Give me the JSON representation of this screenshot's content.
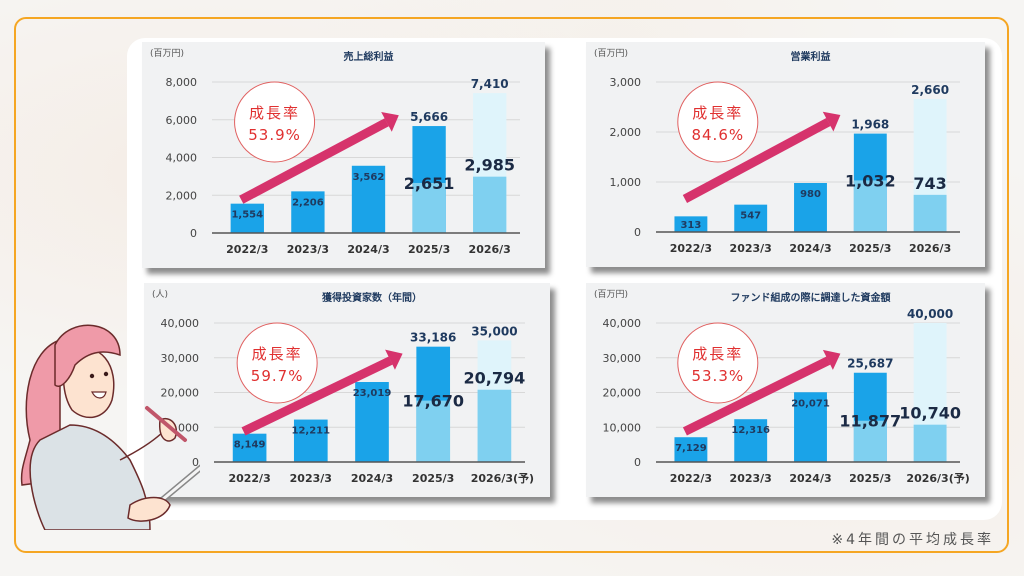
{
  "footnote": "※4年間の平均成長率",
  "colors": {
    "frame": "#f5a623",
    "bar_actual": "#1aa3e8",
    "bar_plan_lower": "#7fd0f0",
    "bar_plan_upper": "#dff4fb",
    "arrow": "#d6336c",
    "growth_text": "#e03030",
    "label_text": "#1f3a5f"
  },
  "chart_data": [
    {
      "id": "gross-profit",
      "type": "bar",
      "title": "売上総利益",
      "unit": "(百万円)",
      "categories": [
        "2022/3",
        "2023/3",
        "2024/3",
        "2025/3",
        "2026/3"
      ],
      "x_suffix": "",
      "ylim": [
        0,
        8000
      ],
      "yticks": [
        "0",
        "2,000",
        "4,000",
        "6,000",
        "8,000"
      ],
      "yvals": [
        0,
        2000,
        4000,
        6000,
        8000
      ],
      "series": [
        {
          "name": "total",
          "values": [
            1554,
            2206,
            3562,
            5666,
            7410
          ],
          "labels": [
            "1,554",
            "2,206",
            "3,562",
            "5,666",
            "7,410"
          ]
        },
        {
          "name": "lower_part",
          "values": [
            null,
            null,
            null,
            2651,
            2985
          ],
          "labels": [
            "",
            "",
            "",
            "2,651",
            "2,985"
          ]
        }
      ],
      "growth_label": "成長率",
      "growth_rate": "53.9%"
    },
    {
      "id": "operating-profit",
      "type": "bar",
      "title": "営業利益",
      "unit": "(百万円)",
      "categories": [
        "2022/3",
        "2023/3",
        "2024/3",
        "2025/3",
        "2026/3"
      ],
      "x_suffix": "",
      "ylim": [
        0,
        3000
      ],
      "yticks": [
        "0",
        "1,000",
        "2,000",
        "3,000"
      ],
      "yvals": [
        0,
        1000,
        2000,
        3000
      ],
      "series": [
        {
          "name": "total",
          "values": [
            313,
            547,
            980,
            1968,
            2660
          ],
          "labels": [
            "313",
            "547",
            "980",
            "1,968",
            "2,660"
          ]
        },
        {
          "name": "lower_part",
          "values": [
            null,
            null,
            null,
            1032,
            743
          ],
          "labels": [
            "",
            "",
            "",
            "1,032",
            "743"
          ]
        }
      ],
      "growth_label": "成長率",
      "growth_rate": "84.6%"
    },
    {
      "id": "investors-acquired",
      "type": "bar",
      "title": "獲得投資家数（年間）",
      "unit": "(人)",
      "categories": [
        "2022/3",
        "2023/3",
        "2024/3",
        "2025/3",
        "2026/3"
      ],
      "x_suffix": "(予)",
      "ylim": [
        0,
        40000
      ],
      "yticks": [
        "0",
        "10,000",
        "20,000",
        "30,000",
        "40,000"
      ],
      "yvals": [
        0,
        10000,
        20000,
        30000,
        40000
      ],
      "series": [
        {
          "name": "total",
          "values": [
            8149,
            12211,
            23019,
            33186,
            35000
          ],
          "labels": [
            "8,149",
            "12,211",
            "23,019",
            "33,186",
            "35,000"
          ]
        },
        {
          "name": "lower_part",
          "values": [
            null,
            null,
            null,
            17670,
            20794
          ],
          "labels": [
            "",
            "",
            "",
            "17,670",
            "20,794"
          ]
        }
      ],
      "growth_label": "成長率",
      "growth_rate": "59.7%"
    },
    {
      "id": "fund-raised",
      "type": "bar",
      "title": "ファンド組成の際に調達した資金額",
      "unit": "(百万円)",
      "categories": [
        "2022/3",
        "2023/3",
        "2024/3",
        "2025/3",
        "2026/3"
      ],
      "x_suffix": "(予)",
      "ylim": [
        0,
        40000
      ],
      "yticks": [
        "0",
        "10,000",
        "20,000",
        "30,000",
        "40,000"
      ],
      "yvals": [
        0,
        10000,
        20000,
        30000,
        40000
      ],
      "series": [
        {
          "name": "total",
          "values": [
            7129,
            12316,
            20071,
            25687,
            40000
          ],
          "labels": [
            "7,129",
            "12,316",
            "20,071",
            "25,687",
            "40,000"
          ]
        },
        {
          "name": "lower_part",
          "values": [
            null,
            null,
            null,
            11877,
            10740
          ],
          "labels": [
            "",
            "",
            "",
            "11,877",
            "10,740"
          ]
        }
      ],
      "growth_label": "成長率",
      "growth_rate": "53.3%"
    }
  ]
}
